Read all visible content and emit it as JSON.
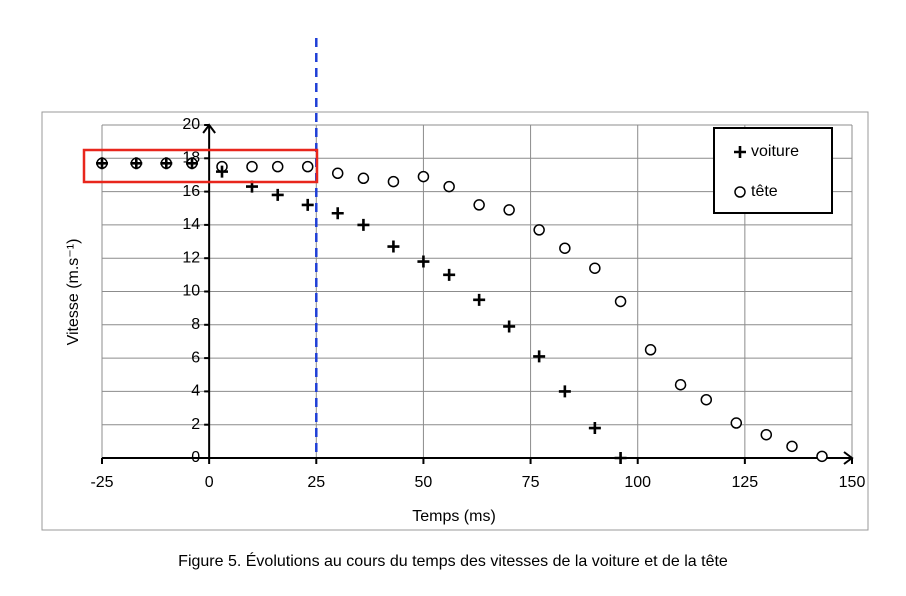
{
  "chart_data": {
    "type": "scatter",
    "caption": "Figure 5. Évolutions au cours du temps des vitesses de la voiture et de la tête",
    "xlabel": "Temps (ms)",
    "ylabel": "Vitesse (m.s⁻¹)",
    "xlim": [
      -25,
      150
    ],
    "xticks": [
      -25,
      0,
      25,
      50,
      75,
      100,
      125,
      150
    ],
    "ylim": [
      0,
      20
    ],
    "yticks": [
      0,
      2,
      4,
      6,
      8,
      10,
      12,
      14,
      16,
      18,
      20
    ],
    "grid": true,
    "legend": "upper right",
    "series": [
      {
        "name": "voiture",
        "marker": "plus",
        "color": "#000000",
        "x": [
          -25,
          -17,
          -10,
          -4,
          3,
          10,
          16,
          23,
          30,
          36,
          43,
          50,
          56,
          63,
          70,
          77,
          83,
          90,
          96
        ],
        "values": [
          17.7,
          17.7,
          17.7,
          17.7,
          17.2,
          16.3,
          15.8,
          15.2,
          14.7,
          14.0,
          12.7,
          11.8,
          11.0,
          9.5,
          7.9,
          6.1,
          4.0,
          1.8,
          0
        ]
      },
      {
        "name": "tête",
        "marker": "circle",
        "color": "#000000",
        "x": [
          -25,
          -17,
          -10,
          -4,
          3,
          10,
          16,
          23,
          30,
          36,
          43,
          50,
          56,
          63,
          70,
          77,
          83,
          90,
          96,
          103,
          110,
          116,
          123,
          130,
          136,
          143
        ],
        "values": [
          17.7,
          17.7,
          17.7,
          17.7,
          17.5,
          17.5,
          17.5,
          17.5,
          17.1,
          16.8,
          16.6,
          16.9,
          16.3,
          15.2,
          14.9,
          13.7,
          12.6,
          11.4,
          9.4,
          6.5,
          4.4,
          3.5,
          2.1,
          1.4,
          0.7,
          0.1
        ]
      }
    ]
  }
}
